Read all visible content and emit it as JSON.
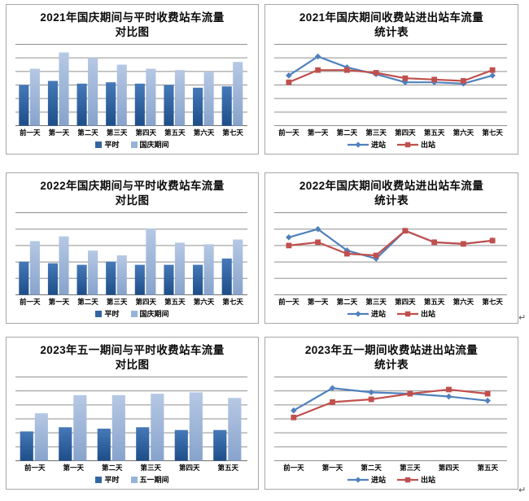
{
  "page": {
    "paragraph_mark": "↵"
  },
  "chart_data": [
    {
      "type": "bar",
      "title": "2021年国庆期间与平时收费站车流量对比图",
      "title_line1": "2021年国庆期间与平时收费站车流量",
      "title_line2": "对比图",
      "categories": [
        "前一天",
        "第一天",
        "第二天",
        "第三天",
        "第四天",
        "第五天",
        "第六天",
        "第七天"
      ],
      "series": [
        {
          "name": "平时",
          "values": [
            3.0,
            3.3,
            3.1,
            3.2,
            3.1,
            3.0,
            2.8,
            2.9
          ],
          "gradient": [
            "#4679b8",
            "#1d4e89"
          ],
          "legend_color": "#3565a1"
        },
        {
          "name": "国庆期间",
          "values": [
            4.2,
            5.4,
            5.0,
            4.5,
            4.2,
            4.1,
            4.0,
            4.7
          ],
          "gradient": [
            "#b6c8e4",
            "#87a3cc"
          ],
          "legend_color": "#95b3d7"
        }
      ],
      "ymax": 6,
      "gridlines": 7,
      "xlabel": "",
      "ylabel": "",
      "legend_position": "bottom",
      "note_axis": "no numeric tick labels shown; values in gridline units"
    },
    {
      "type": "line",
      "title": "2021年国庆期间收费站进出站车流量统计表",
      "title_line1": "2021年国庆期间收费站进出站车流量",
      "title_line2": "统计表",
      "categories": [
        "前一天",
        "第一天",
        "第二天",
        "第三天",
        "第四天",
        "第五天",
        "第六天",
        "第七天"
      ],
      "series": [
        {
          "name": "进站",
          "values": [
            3.7,
            5.1,
            4.3,
            3.8,
            3.2,
            3.2,
            3.1,
            3.7
          ],
          "color": "#4f81bd",
          "marker": "diamond"
        },
        {
          "name": "出站",
          "values": [
            3.2,
            4.1,
            4.1,
            3.9,
            3.5,
            3.4,
            3.3,
            4.1
          ],
          "color": "#c0504d",
          "marker": "square"
        }
      ],
      "ymax": 6,
      "gridlines": 7,
      "xlabel": "",
      "ylabel": "",
      "legend_position": "bottom",
      "note_axis": "no numeric tick labels shown; values in gridline units"
    },
    {
      "type": "bar",
      "title": "2022年国庆期间与平时收费站车流量对比图",
      "title_line1": "2022年国庆期间与平时收费站车流量",
      "title_line2": "对比图",
      "categories": [
        "前一天",
        "第一天",
        "第二天",
        "第三天",
        "第四天",
        "第五天",
        "第六天",
        "第七天"
      ],
      "series": [
        {
          "name": "平时",
          "values": [
            2.1,
            2.0,
            1.9,
            2.1,
            1.9,
            1.9,
            1.9,
            2.3
          ],
          "gradient": [
            "#4679b8",
            "#1d4e89"
          ],
          "legend_color": "#3565a1"
        },
        {
          "name": "国庆期间",
          "values": [
            3.4,
            3.7,
            2.8,
            2.5,
            4.2,
            3.3,
            3.2,
            3.5
          ],
          "gradient": [
            "#b6c8e4",
            "#87a3cc"
          ],
          "legend_color": "#95b3d7"
        }
      ],
      "ymax": 5.2,
      "gridlines": 6,
      "xlabel": "",
      "ylabel": "",
      "legend_position": "bottom",
      "note_axis": "no numeric tick labels shown; values in gridline units"
    },
    {
      "type": "line",
      "title": "2022年国庆期间收费站进出站车流量统计表",
      "title_line1": "2022年国庆期间收费站进出站车流量",
      "title_line2": "统计表",
      "categories": [
        "前一天",
        "第一天",
        "第二天",
        "第三天",
        "第四天",
        "第五天",
        "第六天",
        "第七天"
      ],
      "series": [
        {
          "name": "进站",
          "values": [
            3.5,
            4.0,
            2.7,
            2.2,
            3.9,
            3.2,
            3.1,
            3.3
          ],
          "color": "#4f81bd",
          "marker": "diamond"
        },
        {
          "name": "出站",
          "values": [
            3.0,
            3.2,
            2.5,
            2.4,
            3.9,
            3.2,
            3.1,
            3.3
          ],
          "color": "#c0504d",
          "marker": "square"
        }
      ],
      "ymax": 5,
      "gridlines": 6,
      "xlabel": "",
      "ylabel": "",
      "legend_position": "bottom",
      "note_axis": "no numeric tick labels shown; values in gridline units"
    },
    {
      "type": "bar",
      "title": "2023年五一期间与平时收费站车流量对比图",
      "title_line1": "2023年五一期间与平时收费站车流量",
      "title_line2": "对比图",
      "categories": [
        "前一天",
        "第一天",
        "第二天",
        "第三天",
        "第四天",
        "第五天"
      ],
      "series": [
        {
          "name": "平时",
          "values": [
            2.1,
            2.4,
            2.3,
            2.4,
            2.2,
            2.2
          ],
          "gradient": [
            "#4679b8",
            "#1d4e89"
          ],
          "legend_color": "#3565a1"
        },
        {
          "name": "五一期间",
          "values": [
            3.4,
            4.7,
            4.7,
            4.8,
            4.9,
            4.5
          ],
          "gradient": [
            "#b6c8e4",
            "#87a3cc"
          ],
          "legend_color": "#95b3d7"
        }
      ],
      "ymax": 6,
      "gridlines": 7,
      "xlabel": "",
      "ylabel": "",
      "legend_position": "bottom",
      "note_axis": "no numeric tick labels shown; values in gridline units"
    },
    {
      "type": "line",
      "title": "2023年五一期间收费站进出站流量统计表",
      "title_line1": "2023年五一期间收费站进出站流量",
      "title_line2": "统计表",
      "categories": [
        "前一天",
        "第一天",
        "第二天",
        "第三天",
        "第四天",
        "第五天"
      ],
      "series": [
        {
          "name": "进站",
          "values": [
            3.6,
            5.2,
            4.9,
            4.8,
            4.6,
            4.3
          ],
          "color": "#4f81bd",
          "marker": "diamond"
        },
        {
          "name": "出站",
          "values": [
            3.1,
            4.2,
            4.4,
            4.8,
            5.1,
            4.8
          ],
          "color": "#c0504d",
          "marker": "square"
        }
      ],
      "ymax": 6,
      "gridlines": 7,
      "xlabel": "",
      "ylabel": "",
      "legend_position": "bottom",
      "note_axis": "no numeric tick labels shown; values in gridline units"
    }
  ]
}
